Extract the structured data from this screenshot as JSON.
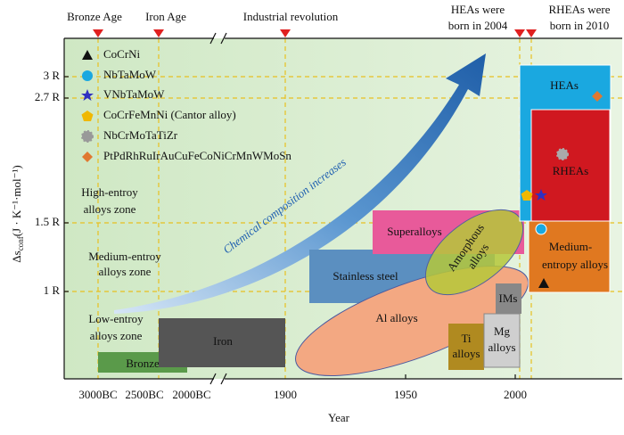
{
  "eras": {
    "bronze_age": "Bronze Age",
    "iron_age": "Iron Age",
    "industrial": "Industrial revolution",
    "heas_born": [
      "HEAs were",
      "born in 2004"
    ],
    "rheas_born": [
      "RHEAs were",
      "born in 2010"
    ]
  },
  "y_axis": {
    "symbol": "Δs",
    "subscript": "conf",
    "unit": "(J · K⁻¹·mol⁻¹)",
    "ticks": [
      "3 R",
      "2.7 R",
      "1.5 R",
      "1 R"
    ]
  },
  "x_axis": {
    "label": "Year",
    "ticks": [
      "3000BC",
      "2500BC",
      "2000BC",
      "1900",
      "1950",
      "2000"
    ]
  },
  "legend": [
    "CoCrNi",
    "NbTaMoW",
    "VNbTaMoW",
    "CoCrFeMnNi (Cantor alloy)",
    "NbCrMoTaTiZr",
    "PtPdRhRuIrAuCuFeCoNiCrMnWMoSn"
  ],
  "zones": {
    "high": [
      "High-entroy",
      "alloys zone"
    ],
    "medium": [
      "Medium-entroy",
      "alloys zone"
    ],
    "low": [
      "Low-entroy",
      "alloys zone"
    ]
  },
  "arrow_label": "Chemical composition increases",
  "regions": {
    "bronze": "Bronze",
    "iron": "Iron",
    "stainless": "Stainless steel",
    "superalloys": "Superalloys",
    "al": "Al alloys",
    "amorphous": [
      "Amorphous",
      "alloys"
    ],
    "ims": "IMs",
    "ti": [
      "Ti",
      "alloys"
    ],
    "mg": [
      "Mg",
      "alloys"
    ],
    "heas": "HEAs",
    "rheas": "RHEAs",
    "medium": [
      "Medium-",
      "entropy alloys"
    ]
  }
}
